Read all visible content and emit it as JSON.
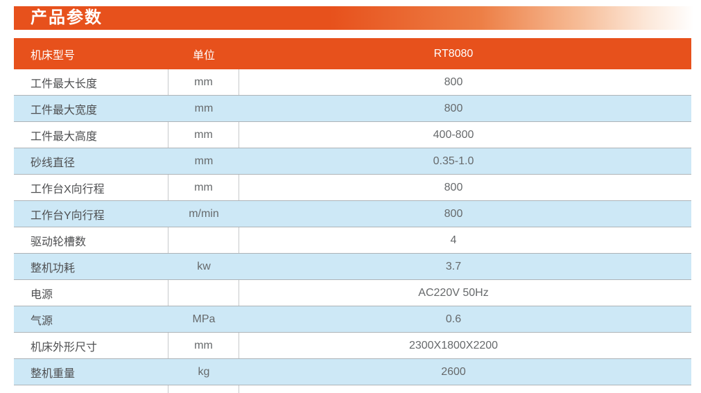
{
  "banner": {
    "title": "产品参数"
  },
  "table": {
    "header": {
      "model_label": "机床型号",
      "unit_label": "单位",
      "model_value": "RT8080"
    },
    "rows": [
      {
        "label": "工件最大长度",
        "unit": "mm",
        "value": "800"
      },
      {
        "label": "工件最大宽度",
        "unit": "mm",
        "value": "800"
      },
      {
        "label": "工件最大高度",
        "unit": "mm",
        "value": "400-800"
      },
      {
        "label": "砂线直径",
        "unit": "mm",
        "value": "0.35-1.0"
      },
      {
        "label": "工作台X向行程",
        "unit": "mm",
        "value": "800"
      },
      {
        "label": "工作台Y向行程",
        "unit": "m/min",
        "value": "800"
      },
      {
        "label": "驱动轮槽数",
        "unit": "",
        "value": "4"
      },
      {
        "label": "整机功耗",
        "unit": "kw",
        "value": "3.7"
      },
      {
        "label": "电源",
        "unit": "",
        "value": "AC220V 50Hz"
      },
      {
        "label": "气源",
        "unit": "MPa",
        "value": "0.6"
      },
      {
        "label": "机床外形尺寸",
        "unit": "mm",
        "value": "2300X1800X2200"
      },
      {
        "label": "整机重量",
        "unit": "kg",
        "value": "2600"
      }
    ]
  },
  "colors": {
    "accent_orange": "#e7511c",
    "row_blue": "#cde8f6",
    "row_border": "#adb3b7",
    "label_text": "#4e4f51",
    "value_text": "#66696b"
  }
}
